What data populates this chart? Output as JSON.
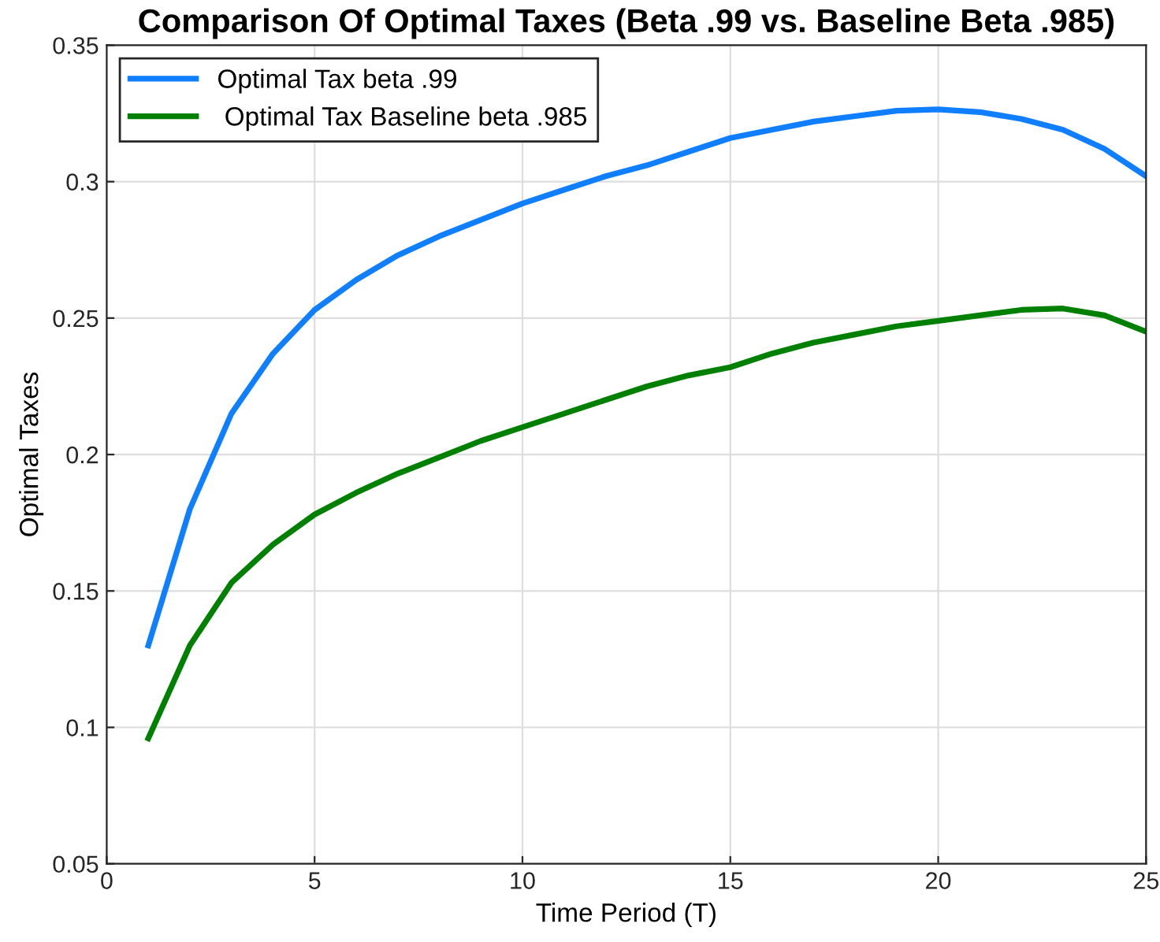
{
  "chart_data": {
    "type": "line",
    "title": "Comparison Of Optimal Taxes (Beta .99 vs. Baseline Beta .985)",
    "xlabel": "Time Period (T)",
    "ylabel": "Optimal Taxes",
    "x": [
      1,
      2,
      3,
      4,
      5,
      6,
      7,
      8,
      9,
      10,
      11,
      12,
      13,
      14,
      15,
      16,
      17,
      18,
      19,
      20,
      21,
      22,
      23,
      24,
      25
    ],
    "series": [
      {
        "name": "Optimal Tax beta .99",
        "color": "#0f7fff",
        "values": [
          0.13,
          0.18,
          0.215,
          0.237,
          0.253,
          0.264,
          0.273,
          0.28,
          0.286,
          0.292,
          0.297,
          0.302,
          0.306,
          0.311,
          0.316,
          0.319,
          0.322,
          0.324,
          0.326,
          0.3265,
          0.3255,
          0.323,
          0.319,
          0.312,
          0.302
        ]
      },
      {
        "name": " Optimal Tax Baseline beta .985",
        "color": "#008000",
        "values": [
          0.096,
          0.13,
          0.153,
          0.167,
          0.178,
          0.186,
          0.193,
          0.199,
          0.205,
          0.21,
          0.215,
          0.22,
          0.225,
          0.229,
          0.232,
          0.237,
          0.241,
          0.244,
          0.247,
          0.249,
          0.251,
          0.253,
          0.2535,
          0.251,
          0.245
        ]
      }
    ],
    "xlim": [
      0,
      25
    ],
    "xticks": [
      0,
      5,
      10,
      15,
      20,
      25
    ],
    "ylim": [
      0.05,
      0.35
    ],
    "yticks": [
      0.05,
      0.1,
      0.15,
      0.2,
      0.25,
      0.3,
      0.35
    ],
    "grid": true,
    "legend": "top left",
    "marker": "none",
    "line_style": "solid"
  }
}
